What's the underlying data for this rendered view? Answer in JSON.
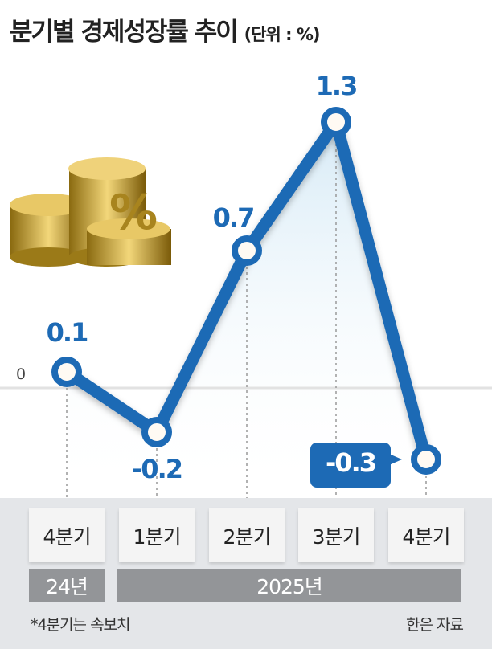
{
  "title": "분기별 경제성장률 추이",
  "unit": "(단위 : %)",
  "chart_data": {
    "type": "line",
    "categories": [
      "4분기",
      "1분기",
      "2분기",
      "3분기",
      "4분기"
    ],
    "year_groups": [
      {
        "label": "24년",
        "span": 1
      },
      {
        "label": "2025년",
        "span": 4
      }
    ],
    "values": [
      0.1,
      -0.2,
      0.7,
      1.3,
      -0.3
    ],
    "data_labels": [
      "0.1",
      "-0.2",
      "0.7",
      "1.3",
      "-0.3"
    ],
    "zero_label": "0",
    "color": "#1d6ab5"
  },
  "footnote": "*4분기는 속보치",
  "source": "한은 자료",
  "illustration": "gold-coins-percent"
}
